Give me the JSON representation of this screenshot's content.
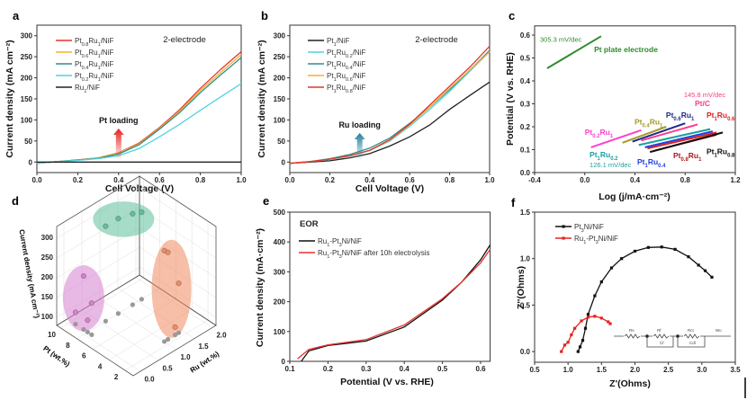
{
  "chart_data": [
    {
      "panel": "a",
      "type": "line",
      "annotation": "2-electrode",
      "arrow_label": "Pt loading",
      "arrow_x": 0.4,
      "xlabel": "Cell Voltage (V)",
      "ylabel": "Current density (mA cm⁻²)",
      "xlim": [
        0,
        1
      ],
      "ylim": [
        -25,
        325
      ],
      "xticks": [
        0,
        0.2,
        0.4,
        0.6,
        0.8,
        1.0
      ],
      "yticks": [
        0,
        50,
        100,
        150,
        200,
        250,
        300
      ],
      "x": [
        0,
        0.1,
        0.2,
        0.3,
        0.4,
        0.5,
        0.6,
        0.7,
        0.8,
        0.9,
        1.0
      ],
      "series": [
        {
          "name": "Pt0.8Ru1/NiF",
          "color": "#e8322f",
          "values": [
            -3,
            1,
            5,
            10,
            22,
            45,
            82,
            125,
            175,
            220,
            262
          ]
        },
        {
          "name": "Pt0.6Ru1/NiF",
          "color": "#f2b134",
          "values": [
            -3,
            1,
            5,
            10,
            21,
            43,
            80,
            122,
            170,
            213,
            255
          ]
        },
        {
          "name": "Pt0.4Ru1/NiF",
          "color": "#2f8f8a",
          "values": [
            -3,
            1,
            5,
            9,
            19,
            41,
            78,
            118,
            165,
            207,
            248
          ]
        },
        {
          "name": "Pt0.2Ru1/NiF",
          "color": "#4fd3e0",
          "values": [
            -3,
            1,
            4,
            8,
            15,
            32,
            60,
            90,
            123,
            155,
            186
          ]
        },
        {
          "name": "Ru1/NiF",
          "color": "#222222",
          "values": [
            0,
            0,
            0,
            0,
            0,
            0,
            0,
            0,
            0,
            0,
            0
          ]
        }
      ]
    },
    {
      "panel": "b",
      "type": "line",
      "annotation": "2-electrode",
      "arrow_label": "Ru loading",
      "arrow_x": 0.35,
      "xlabel": "Cell Voltage (V)",
      "ylabel": "Current density (mA cm⁻²)",
      "xlim": [
        0,
        1
      ],
      "ylim": [
        -25,
        325
      ],
      "xticks": [
        0,
        0.2,
        0.4,
        0.6,
        0.8,
        1.0
      ],
      "yticks": [
        0,
        50,
        100,
        150,
        200,
        250,
        300
      ],
      "x": [
        0,
        0.1,
        0.2,
        0.3,
        0.4,
        0.5,
        0.6,
        0.7,
        0.8,
        0.9,
        1.0
      ],
      "series": [
        {
          "name": "Pt1/NiF",
          "color": "#222222",
          "values": [
            -3,
            0,
            3,
            10,
            20,
            38,
            60,
            88,
            125,
            158,
            190
          ]
        },
        {
          "name": "Pt1Ru0.2/NiF",
          "color": "#4fd3e0",
          "values": [
            -3,
            1,
            6,
            14,
            27,
            50,
            85,
            125,
            168,
            215,
            262
          ]
        },
        {
          "name": "Pt1Ru0.4/NiF",
          "color": "#2f8f8a",
          "values": [
            -3,
            1,
            8,
            18,
            33,
            57,
            92,
            130,
            172,
            218,
            265
          ]
        },
        {
          "name": "Pt1Ru0.6/NiF",
          "color": "#f2b134",
          "values": [
            -3,
            1,
            7,
            15,
            28,
            52,
            88,
            130,
            175,
            218,
            262
          ]
        },
        {
          "name": "Pt1Ru0.8/NiF",
          "color": "#e8322f",
          "values": [
            -3,
            1,
            7,
            15,
            28,
            53,
            90,
            135,
            180,
            225,
            275
          ]
        }
      ]
    },
    {
      "panel": "c",
      "type": "line",
      "xlabel": "Log (j/mA·cm⁻²)",
      "ylabel": "Potential (V vs. RHE)",
      "xlim": [
        -0.4,
        1.2
      ],
      "ylim": [
        0,
        0.64
      ],
      "xticks": [
        -0.4,
        0,
        0.4,
        0.8,
        1.2
      ],
      "yticks": [
        0,
        0.1,
        0.2,
        0.3,
        0.4,
        0.5,
        0.6
      ],
      "series": [
        {
          "name": "Pt plate electrode",
          "color": "#2e8b2e",
          "x": [
            -0.3,
            0.13
          ],
          "y": [
            0.455,
            0.595
          ]
        },
        {
          "name": "Pt0.2Ru1",
          "color": "#ff3fd0",
          "x": [
            0.05,
            0.45
          ],
          "y": [
            0.11,
            0.185
          ]
        },
        {
          "name": "Pt0.4Ru1",
          "color": "#a59a2a",
          "x": [
            0.3,
            0.65
          ],
          "y": [
            0.13,
            0.2
          ]
        },
        {
          "name": "Pt0.6Ru1",
          "color": "#1f2a8a",
          "x": [
            0.38,
            0.8
          ],
          "y": [
            0.135,
            0.215
          ]
        },
        {
          "name": "Pt/C",
          "color": "#ff3a8a",
          "x": [
            0.45,
            0.9
          ],
          "y": [
            0.14,
            0.21
          ]
        },
        {
          "name": "Pt1Ru0.2",
          "color": "#1aa0a0",
          "x": [
            0.43,
            1.0
          ],
          "y": [
            0.12,
            0.19
          ]
        },
        {
          "name": "Pt1Ru0.4",
          "color": "#2040e0",
          "x": [
            0.48,
            1.02
          ],
          "y": [
            0.11,
            0.18
          ]
        },
        {
          "name": "Pt1Ru0.6",
          "color": "#e02020",
          "x": [
            0.5,
            1.05
          ],
          "y": [
            0.105,
            0.175
          ]
        },
        {
          "name": "Pt0.8Ru1",
          "color": "#b01818",
          "x": [
            0.55,
            1.05
          ],
          "y": [
            0.095,
            0.165
          ]
        },
        {
          "name": "Pt1Ru0.8",
          "color": "#111111",
          "x": [
            0.52,
            1.1
          ],
          "y": [
            0.09,
            0.175
          ]
        }
      ],
      "annotations": [
        {
          "text": "305.3 mV/dec",
          "x": -0.357,
          "y": 0.57,
          "color": "#2e8b2e",
          "bold": false
        },
        {
          "text": "Pt plate electrode",
          "x": 0.074,
          "y": 0.525,
          "color": "#2e8b2e",
          "bold": true
        },
        {
          "text": "145.8 mV/dec",
          "x": 0.79,
          "y": 0.33,
          "color": "#ff3a8a",
          "bold": false
        },
        {
          "text": "Pt/C",
          "x": 0.877,
          "y": 0.29,
          "color": "#ff3a8a",
          "bold": true
        },
        {
          "text": "Pt0.6Ru1",
          "x": 0.647,
          "y": 0.24,
          "color": "#1f2a8a",
          "bold": true
        },
        {
          "text": "Pt0.4Ru1",
          "x": 0.396,
          "y": 0.21,
          "color": "#a59a2a",
          "bold": true
        },
        {
          "text": "Pt0.2Ru1",
          "x": 0.0,
          "y": 0.165,
          "color": "#ff3fd0",
          "bold": true
        },
        {
          "text": "Pt1Ru0.6",
          "x": 0.97,
          "y": 0.24,
          "color": "#e02020",
          "bold": true
        },
        {
          "text": "Pt1Ru0.8",
          "x": 0.97,
          "y": 0.08,
          "color": "#111111",
          "bold": true
        },
        {
          "text": "Pt0.8Ru1",
          "x": 0.705,
          "y": 0.063,
          "color": "#b01818",
          "bold": true
        },
        {
          "text": "Pt1Ru0.4",
          "x": 0.418,
          "y": 0.035,
          "color": "#2040e0",
          "bold": true
        },
        {
          "text": "Pt1Ru0.2",
          "x": 0.038,
          "y": 0.067,
          "color": "#1aa0a0",
          "bold": true
        },
        {
          "text": "126.1 mV/dec",
          "x": 0.038,
          "y": 0.024,
          "color": "#1aa0a0",
          "bold": false
        }
      ]
    },
    {
      "panel": "d",
      "type": "scatter",
      "xlabel": "Pt (wt.%)",
      "ylabel": "Ru (wt.%)",
      "zlabel": "Current density (mA cm⁻²)",
      "xlim": [
        1,
        10.5
      ],
      "ylim": [
        -0.2,
        2.1
      ],
      "zlim": [
        80,
        330
      ],
      "xticks": [
        2,
        4,
        6,
        8,
        10
      ],
      "yticks": [
        0.0,
        0.5,
        1.0,
        1.5,
        2.0
      ],
      "zticks": [
        100,
        150,
        200,
        250,
        300
      ],
      "groups": [
        {
          "color": "#d77fd0",
          "points": [
            {
              "pt": 8.5,
              "ru": 0.1,
              "j": 215
            },
            {
              "pt": 7.5,
              "ru": 0.1,
              "j": 160
            },
            {
              "pt": 9.5,
              "ru": 0.1,
              "j": 110
            },
            {
              "pt": 8.0,
              "ru": 0.1,
              "j": 110
            }
          ]
        },
        {
          "color": "#5fbf9a",
          "points": [
            {
              "pt": 8,
              "ru": 0.6,
              "j": 320
            },
            {
              "pt": 8,
              "ru": 0.95,
              "j": 320
            },
            {
              "pt": 8,
              "ru": 1.35,
              "j": 310
            },
            {
              "pt": 8,
              "ru": 1.6,
              "j": 300
            }
          ]
        },
        {
          "color": "#f08a5f",
          "points": [
            {
              "pt": 2.5,
              "ru": 1.0,
              "j": 310
            },
            {
              "pt": 2.5,
              "ru": 1.1,
              "j": 300
            },
            {
              "pt": 2.5,
              "ru": 1.4,
              "j": 205
            },
            {
              "pt": 2.5,
              "ru": 1.3,
              "j": 100
            }
          ]
        }
      ]
    },
    {
      "panel": "e",
      "type": "line",
      "annotation": "EOR",
      "xlabel": "Potential (V vs. RHE)",
      "ylabel": "Current density (mA·cm⁻²)",
      "xlim": [
        0.1,
        0.625
      ],
      "ylim": [
        0,
        500
      ],
      "xticks": [
        0.1,
        0.2,
        0.3,
        0.4,
        0.5,
        0.6
      ],
      "yticks": [
        0,
        100,
        200,
        300,
        400,
        500
      ],
      "series": [
        {
          "name": "Ru1-Pt3Ni/NiF",
          "color": "#111111",
          "x": [
            0.13,
            0.15,
            0.2,
            0.3,
            0.4,
            0.5,
            0.55,
            0.6,
            0.625
          ],
          "y": [
            0,
            35,
            53,
            68,
            115,
            205,
            265,
            340,
            390
          ]
        },
        {
          "name": "Ru1-Pt3Ni/NiF after 10h electrolysis",
          "color": "#e8322f",
          "x": [
            0.12,
            0.15,
            0.2,
            0.3,
            0.4,
            0.5,
            0.55,
            0.6,
            0.625
          ],
          "y": [
            8,
            40,
            55,
            73,
            122,
            210,
            265,
            330,
            375
          ]
        }
      ]
    },
    {
      "panel": "f",
      "type": "scatter",
      "xlabel": "Z'(Ohms)",
      "ylabel": "Z''(Ohms)",
      "xlim": [
        0.5,
        3.5
      ],
      "ylim": [
        -0.115,
        1.5
      ],
      "xticks": [
        0.5,
        1.0,
        1.5,
        2.0,
        2.5,
        3.0,
        3.5
      ],
      "yticks": [
        0,
        0.5,
        1.0,
        1.5
      ],
      "series": [
        {
          "name": "Pt3Ni/NiF",
          "color": "#111111",
          "x": [
            1.15,
            1.18,
            1.22,
            1.26,
            1.3,
            1.4,
            1.5,
            1.65,
            1.8,
            2.0,
            2.2,
            2.4,
            2.6,
            2.8,
            2.95,
            3.05,
            3.15
          ],
          "y": [
            0.0,
            0.05,
            0.12,
            0.25,
            0.4,
            0.6,
            0.75,
            0.9,
            1.0,
            1.08,
            1.12,
            1.125,
            1.1,
            1.02,
            0.93,
            0.87,
            0.8
          ]
        },
        {
          "name": "Ru1-Pt3Ni/NiF",
          "color": "#e8221f",
          "x": [
            0.9,
            0.95,
            1.0,
            1.05,
            1.1,
            1.2,
            1.3,
            1.4,
            1.5,
            1.6,
            1.63
          ],
          "y": [
            0,
            0.07,
            0.1,
            0.18,
            0.25,
            0.33,
            0.37,
            0.38,
            0.36,
            0.32,
            0.3
          ]
        }
      ],
      "circuit_labels": [
        "Rs",
        "Rf",
        "Cf",
        "Rct",
        "Cdl",
        "Wo"
      ]
    }
  ]
}
